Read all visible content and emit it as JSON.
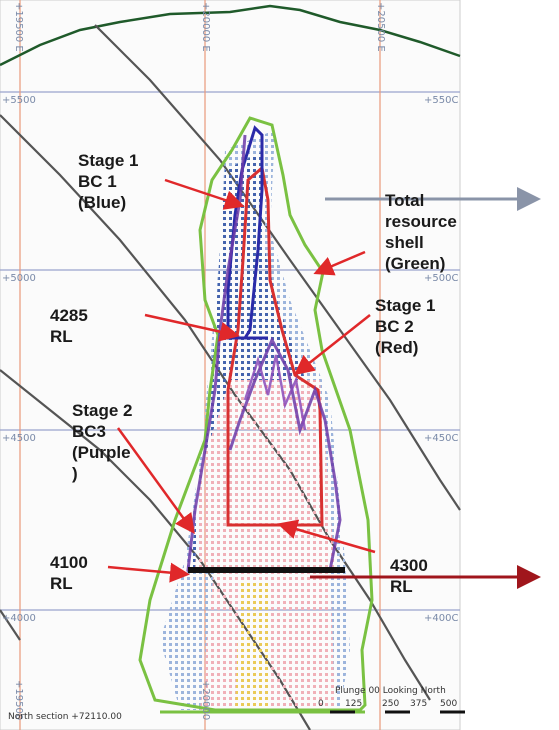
{
  "grid": {
    "easting_labels": [
      "+19500 E",
      "+20000 E",
      "+20500 E",
      "+19500",
      "+20000"
    ],
    "rl_labels_left": [
      "+5500",
      "+5000",
      "+4500",
      "+4000"
    ],
    "rl_labels_right": [
      "+550C",
      "+500C",
      "+450C",
      "+400C"
    ]
  },
  "annotations": {
    "stage1_bc1": "Stage 1\nBC 1\n(Blue)",
    "total_shell": "Total\nresource\nshell\n(Green)",
    "rl_4285": "4285\nRL",
    "stage1_bc2": "Stage 1\nBC 2\n(Red)",
    "stage2_bc3": "Stage 2\nBC3\n(Purple\n)",
    "rl_4100": "4100\nRL",
    "rl_4300": "4300\nRL"
  },
  "footer": {
    "section": "North section +72110.00",
    "plunge": "Plunge 00  Looking North",
    "scale": [
      "0",
      "125",
      "250",
      "375",
      "500"
    ]
  },
  "colors": {
    "blue_bc1": "#2a2aa8",
    "red_bc2": "#d83030",
    "purple_bc3": "#6b3aa8",
    "green_shell": "#7ac142",
    "topo": "#1f5a2a",
    "arrow_red": "#e0282a",
    "arrow_dark_red": "#a0161c",
    "arrow_grey": "#8a94a8"
  }
}
